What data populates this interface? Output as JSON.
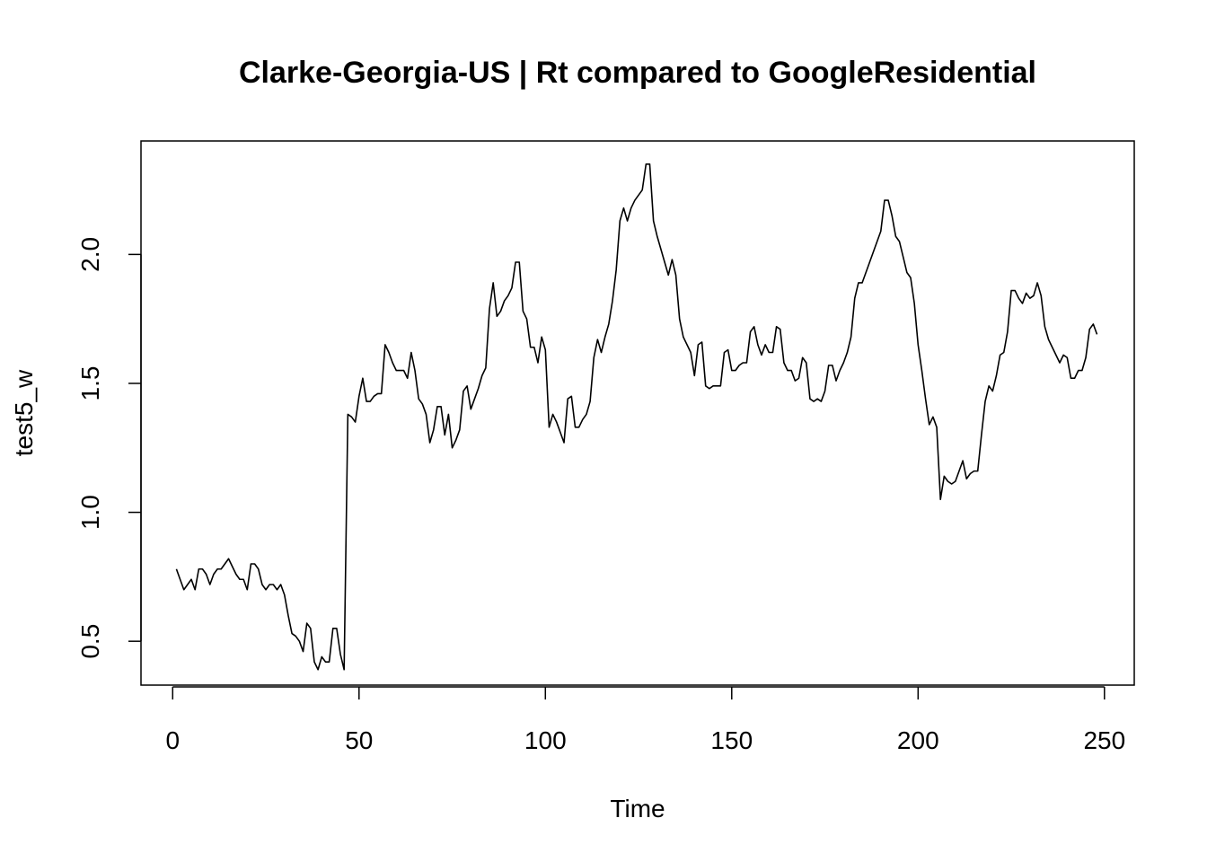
{
  "chart_data": {
    "type": "line",
    "title": "Clarke-Georgia-US | Rt compared to GoogleResidential",
    "xlabel": "Time",
    "ylabel": "test5_w",
    "xlim": [
      -8.5,
      258
    ],
    "ylim": [
      0.33,
      2.44
    ],
    "xticks": [
      0,
      50,
      100,
      150,
      200,
      250
    ],
    "xtick_labels": [
      "0",
      "50",
      "100",
      "150",
      "200",
      "250"
    ],
    "yticks": [
      0.5,
      1.0,
      1.5,
      2.0
    ],
    "ytick_labels": [
      "0.5",
      "1.0",
      "1.5",
      "2.0"
    ],
    "grid": false,
    "legend": "none",
    "series": [
      {
        "x": [
          1,
          2,
          3,
          4,
          5,
          6,
          7,
          8,
          9,
          10,
          11,
          12,
          13,
          14,
          15,
          16,
          17,
          18,
          19,
          20,
          21,
          22,
          23,
          24,
          25,
          26,
          27,
          28,
          29,
          30,
          31,
          32,
          33,
          34,
          35,
          36,
          37,
          38,
          39,
          40,
          41,
          42,
          43,
          44,
          45,
          46,
          47,
          48,
          49,
          50,
          51,
          52,
          53,
          54,
          55,
          56,
          57,
          58,
          59,
          60,
          61,
          62,
          63,
          64,
          65,
          66,
          67,
          68,
          69,
          70,
          71,
          72,
          73,
          74,
          75,
          76,
          77,
          78,
          79,
          80,
          81,
          82,
          83,
          84,
          85,
          86,
          87,
          88,
          89,
          90,
          91,
          92,
          93,
          94,
          95,
          96,
          97,
          98,
          99,
          100,
          101,
          102,
          103,
          104,
          105,
          106,
          107,
          108,
          109,
          110,
          111,
          112,
          113,
          114,
          115,
          116,
          117,
          118,
          119,
          120,
          121,
          122,
          123,
          124,
          125,
          126,
          127,
          128,
          129,
          130,
          131,
          132,
          133,
          134,
          135,
          136,
          137,
          138,
          139,
          140,
          141,
          142,
          143,
          144,
          145,
          146,
          147,
          148,
          149,
          150,
          151,
          152,
          153,
          154,
          155,
          156,
          157,
          158,
          159,
          160,
          161,
          162,
          163,
          164,
          165,
          166,
          167,
          168,
          169,
          170,
          171,
          172,
          173,
          174,
          175,
          176,
          177,
          178,
          179,
          180,
          181,
          182,
          183,
          184,
          185,
          186,
          187,
          188,
          189,
          190,
          191,
          192,
          193,
          194,
          195,
          196,
          197,
          198,
          199,
          200,
          201,
          202,
          203,
          204,
          205,
          206,
          207,
          208,
          209,
          210,
          211,
          212,
          213,
          214,
          215,
          216,
          217,
          218,
          219,
          220,
          221,
          222,
          223,
          224,
          225,
          226,
          227,
          228,
          229,
          230,
          231,
          232,
          233,
          234,
          235,
          236,
          237,
          238,
          239,
          240,
          241,
          242,
          243,
          244,
          245,
          246,
          247,
          248
        ],
        "y": [
          0.78,
          0.74,
          0.7,
          0.72,
          0.74,
          0.7,
          0.78,
          0.78,
          0.76,
          0.72,
          0.76,
          0.78,
          0.78,
          0.8,
          0.82,
          0.79,
          0.76,
          0.74,
          0.74,
          0.7,
          0.8,
          0.8,
          0.78,
          0.72,
          0.7,
          0.72,
          0.72,
          0.7,
          0.72,
          0.68,
          0.6,
          0.53,
          0.52,
          0.5,
          0.46,
          0.57,
          0.55,
          0.42,
          0.39,
          0.44,
          0.42,
          0.42,
          0.55,
          0.55,
          0.45,
          0.39,
          1.38,
          1.37,
          1.35,
          1.45,
          1.52,
          1.43,
          1.43,
          1.45,
          1.46,
          1.46,
          1.65,
          1.62,
          1.58,
          1.55,
          1.55,
          1.55,
          1.52,
          1.62,
          1.55,
          1.44,
          1.42,
          1.38,
          1.27,
          1.32,
          1.41,
          1.41,
          1.3,
          1.38,
          1.25,
          1.28,
          1.32,
          1.47,
          1.49,
          1.4,
          1.44,
          1.48,
          1.53,
          1.56,
          1.79,
          1.89,
          1.76,
          1.78,
          1.82,
          1.84,
          1.87,
          1.97,
          1.97,
          1.78,
          1.75,
          1.64,
          1.64,
          1.58,
          1.68,
          1.63,
          1.33,
          1.38,
          1.35,
          1.31,
          1.27,
          1.44,
          1.45,
          1.33,
          1.33,
          1.36,
          1.38,
          1.43,
          1.6,
          1.67,
          1.62,
          1.68,
          1.73,
          1.82,
          1.94,
          2.13,
          2.18,
          2.13,
          2.18,
          2.21,
          2.23,
          2.25,
          2.35,
          2.35,
          2.13,
          2.07,
          2.02,
          1.97,
          1.92,
          1.98,
          1.92,
          1.75,
          1.68,
          1.65,
          1.62,
          1.53,
          1.65,
          1.66,
          1.49,
          1.48,
          1.49,
          1.49,
          1.49,
          1.62,
          1.63,
          1.55,
          1.55,
          1.57,
          1.58,
          1.58,
          1.7,
          1.72,
          1.65,
          1.61,
          1.65,
          1.62,
          1.62,
          1.72,
          1.71,
          1.58,
          1.55,
          1.55,
          1.51,
          1.52,
          1.6,
          1.58,
          1.44,
          1.43,
          1.44,
          1.43,
          1.47,
          1.57,
          1.57,
          1.51,
          1.55,
          1.58,
          1.62,
          1.68,
          1.83,
          1.89,
          1.89,
          1.93,
          1.97,
          2.01,
          2.05,
          2.09,
          2.21,
          2.21,
          2.15,
          2.07,
          2.05,
          1.99,
          1.93,
          1.91,
          1.81,
          1.65,
          1.55,
          1.44,
          1.34,
          1.37,
          1.33,
          1.05,
          1.14,
          1.12,
          1.11,
          1.12,
          1.16,
          1.2,
          1.13,
          1.15,
          1.16,
          1.16,
          1.3,
          1.43,
          1.49,
          1.47,
          1.53,
          1.61,
          1.62,
          1.7,
          1.86,
          1.86,
          1.83,
          1.81,
          1.85,
          1.83,
          1.84,
          1.89,
          1.84,
          1.72,
          1.67,
          1.64,
          1.61,
          1.58,
          1.61,
          1.6,
          1.52,
          1.52,
          1.55,
          1.55,
          1.6,
          1.71,
          1.73,
          1.69
        ]
      }
    ]
  }
}
